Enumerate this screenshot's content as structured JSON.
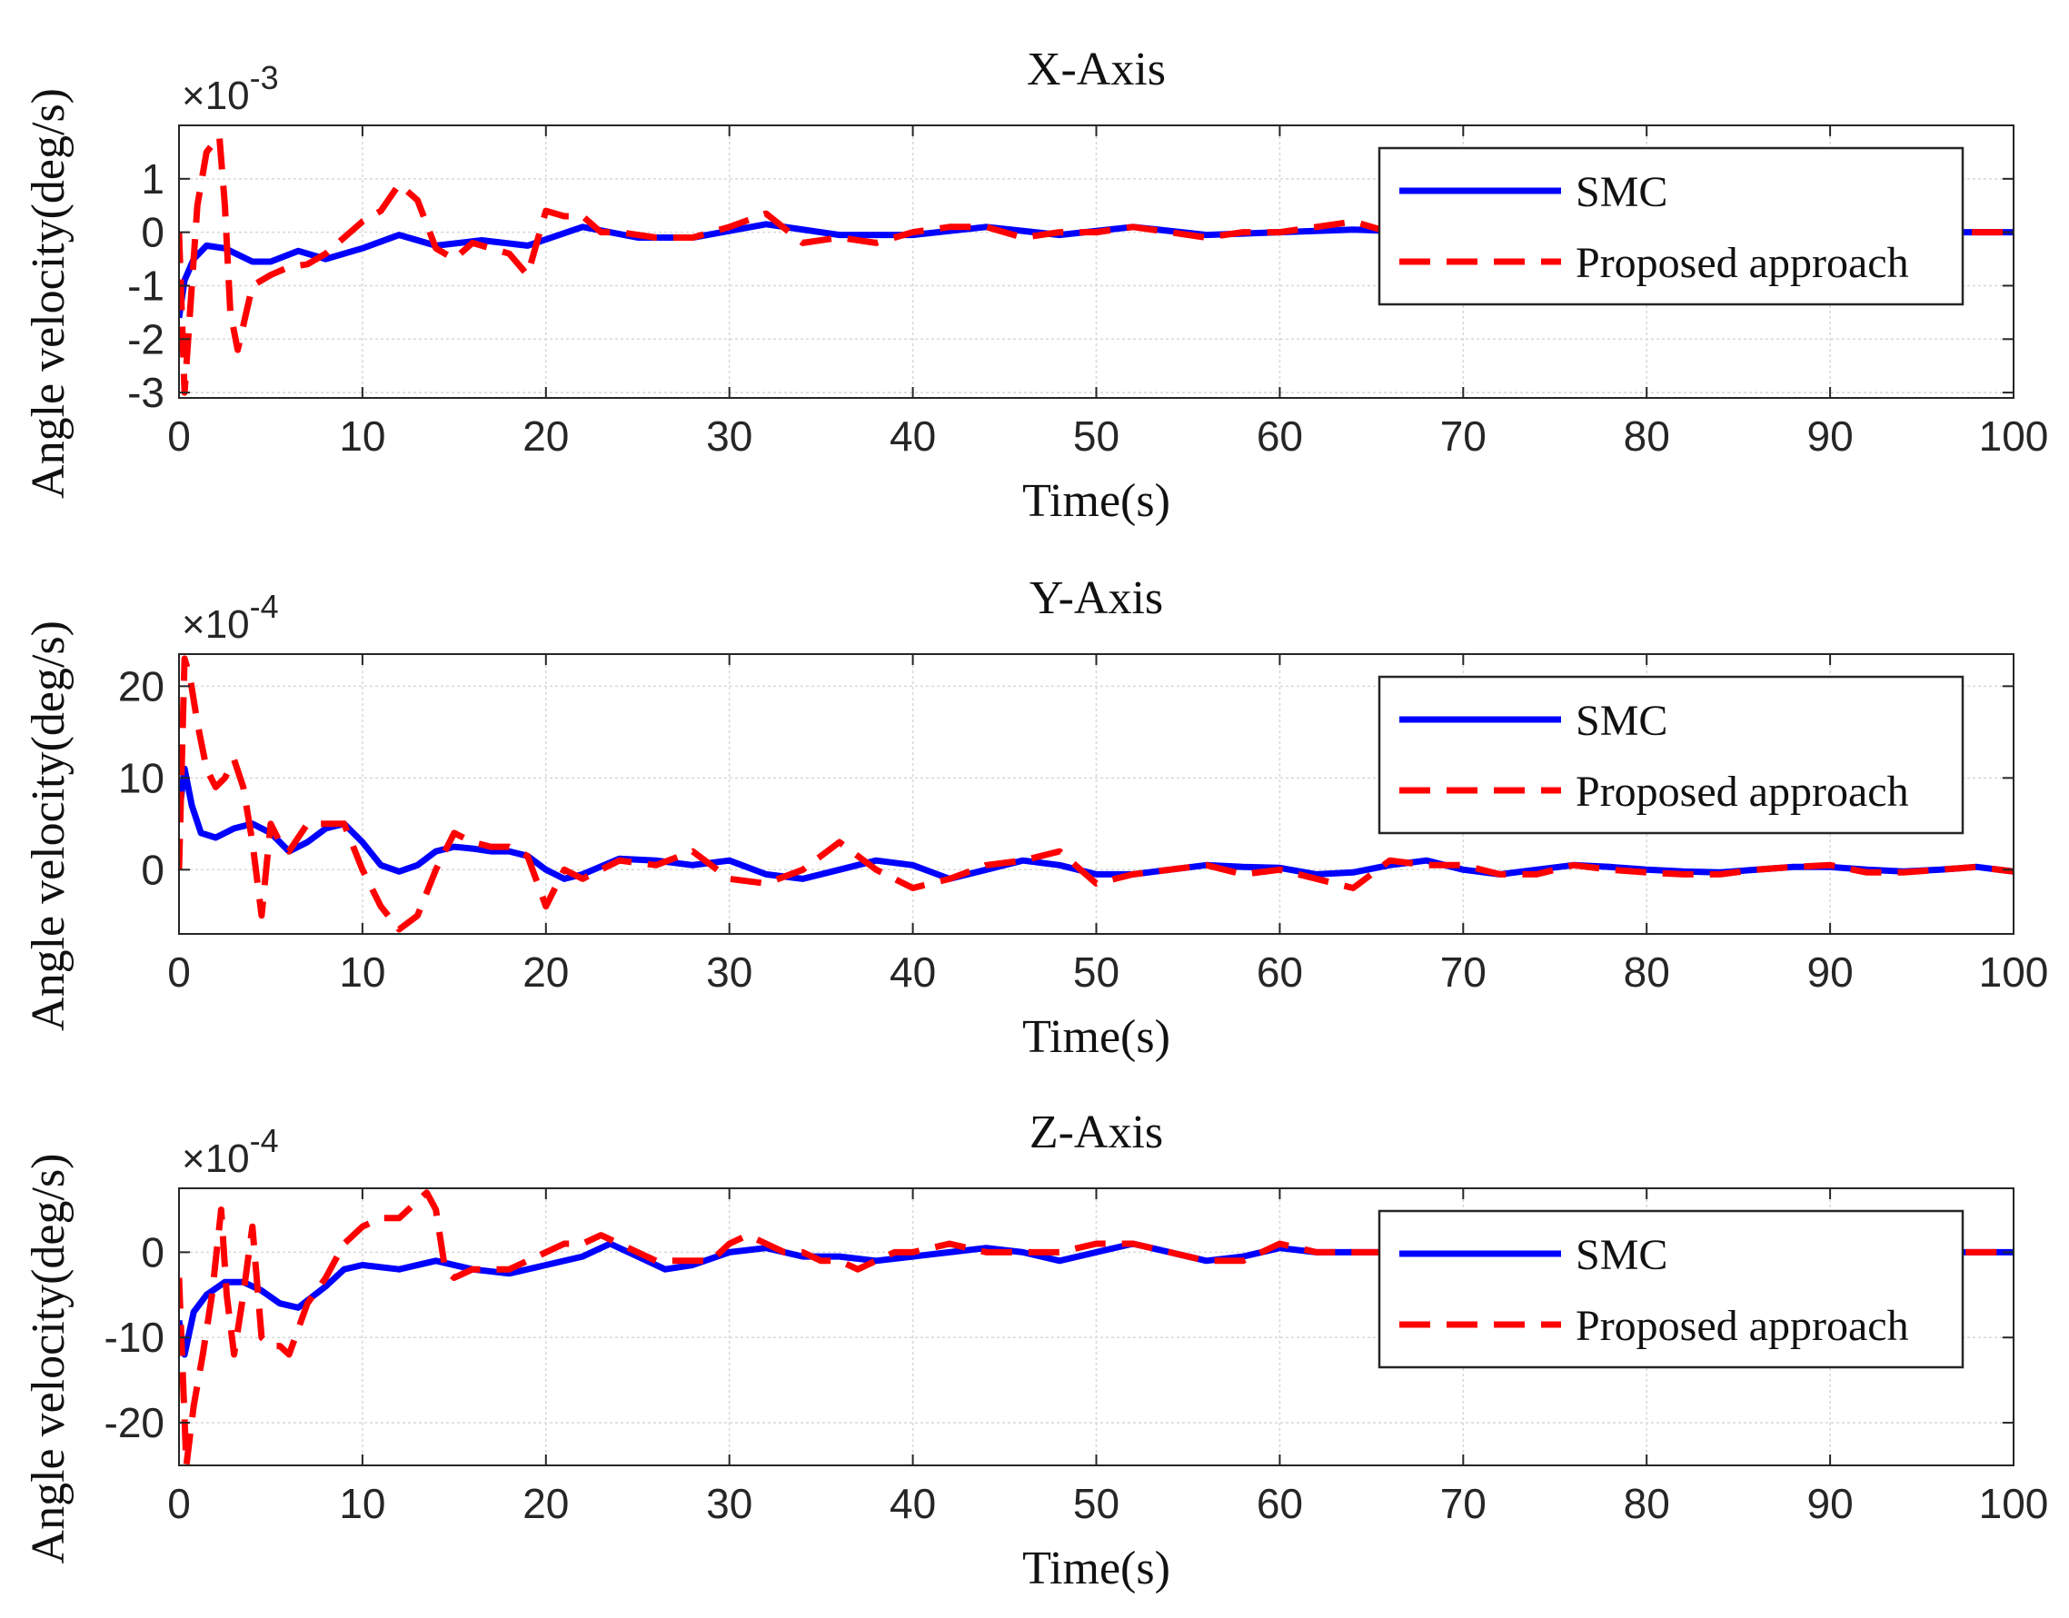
{
  "figure": {
    "legend_labels": [
      "SMC",
      "Proposed approach"
    ]
  },
  "chart_data": [
    {
      "type": "line",
      "title": "X-Axis",
      "xlabel": "Time(s)",
      "ylabel": "Angle velocity(deg/s)",
      "exponent": "-3",
      "xlim": [
        0,
        100
      ],
      "ylim": [
        -3.1,
        2.0
      ],
      "xticks": [
        0,
        10,
        20,
        30,
        40,
        50,
        60,
        70,
        80,
        90,
        100
      ],
      "yticks": [
        -3,
        -2,
        -1,
        0,
        1
      ],
      "grid": true,
      "legend_position": "top-right",
      "series": [
        {
          "name": "SMC",
          "color": "#0000ff",
          "style": "solid",
          "x": [
            0,
            0.3,
            0.8,
            1.5,
            2.5,
            4,
            5,
            6.5,
            8,
            10,
            12,
            14,
            16.5,
            19,
            22,
            25,
            28,
            32,
            36,
            40,
            44,
            48,
            52,
            56,
            60,
            64,
            68,
            72,
            76,
            80,
            84,
            88,
            92,
            96,
            100
          ],
          "y": [
            -1.6,
            -0.9,
            -0.5,
            -0.25,
            -0.3,
            -0.55,
            -0.55,
            -0.35,
            -0.5,
            -0.3,
            -0.05,
            -0.25,
            -0.15,
            -0.25,
            0.1,
            -0.1,
            -0.1,
            0.15,
            -0.05,
            -0.05,
            0.1,
            -0.05,
            0.1,
            -0.05,
            0.0,
            0.05,
            0.0,
            0.0,
            0.05,
            0.0,
            0.05,
            0.0,
            0.05,
            0.0,
            0.0
          ]
        },
        {
          "name": "Proposed approach",
          "color": "#ff0000",
          "style": "dashed",
          "x": [
            0,
            0.3,
            0.6,
            1,
            1.5,
            2.2,
            2.5,
            2.8,
            3.2,
            4,
            5,
            6,
            7,
            8,
            9,
            10,
            11,
            12,
            13,
            14,
            15,
            16,
            17,
            18,
            19,
            20,
            21,
            22,
            23,
            24,
            26,
            28,
            30,
            32,
            34,
            36,
            38,
            40,
            42,
            44,
            46,
            48,
            50,
            52,
            54,
            56,
            58,
            60,
            62,
            64,
            66,
            68,
            70,
            72,
            74,
            76,
            78,
            80,
            82,
            84,
            86,
            88,
            90,
            92,
            94,
            96,
            98,
            100
          ],
          "y": [
            0.0,
            -3.0,
            -1.5,
            0.5,
            1.5,
            1.8,
            0.5,
            -1.5,
            -2.2,
            -1.0,
            -0.8,
            -0.65,
            -0.6,
            -0.4,
            -0.1,
            0.2,
            0.4,
            0.9,
            0.6,
            -0.3,
            -0.5,
            -0.2,
            -0.3,
            -0.4,
            -0.8,
            0.4,
            0.3,
            0.3,
            0.0,
            0.0,
            -0.1,
            -0.1,
            0.1,
            0.35,
            -0.2,
            -0.1,
            -0.2,
            0.0,
            0.1,
            0.1,
            -0.1,
            0.0,
            0.0,
            0.1,
            0.0,
            -0.1,
            0.0,
            0.0,
            0.1,
            0.2,
            0.0,
            0.1,
            0.0,
            0.05,
            0.0,
            0.05,
            0.0,
            0.0,
            0.05,
            0.0,
            0.05,
            0.0,
            0.0,
            0.05,
            0.0,
            0.0,
            0.0,
            0.0
          ]
        }
      ]
    },
    {
      "type": "line",
      "title": "Y-Axis",
      "xlabel": "Time(s)",
      "ylabel": "Angle velocity(deg/s)",
      "exponent": "-4",
      "xlim": [
        0,
        100
      ],
      "ylim": [
        -7,
        23.5
      ],
      "xticks": [
        0,
        10,
        20,
        30,
        40,
        50,
        60,
        70,
        80,
        90,
        100
      ],
      "yticks": [
        0,
        10,
        20
      ],
      "grid": true,
      "legend_position": "top-right",
      "series": [
        {
          "name": "SMC",
          "color": "#0000ff",
          "style": "solid",
          "x": [
            0,
            0.3,
            0.7,
            1.2,
            2,
            3,
            4,
            5,
            6,
            7,
            8,
            9,
            10,
            11,
            12,
            13,
            14,
            15,
            16,
            17,
            18,
            19,
            20,
            21,
            22,
            24,
            26,
            28,
            30,
            32,
            34,
            36,
            38,
            40,
            42,
            44,
            46,
            48,
            50,
            52,
            54,
            56,
            58,
            60,
            62,
            64,
            66,
            68,
            70,
            72,
            74,
            76,
            78,
            80,
            82,
            84,
            86,
            88,
            90,
            92,
            94,
            96,
            98,
            100
          ],
          "y": [
            6,
            11,
            7,
            4,
            3.5,
            4.5,
            5,
            4,
            2,
            3,
            4.5,
            5,
            3,
            0.5,
            -0.2,
            0.5,
            2,
            2.5,
            2.3,
            2,
            2,
            1.5,
            0,
            -1,
            -0.5,
            1.2,
            1,
            0.5,
            1,
            -0.5,
            -1,
            0,
            1,
            0.5,
            -1,
            0,
            1,
            0.5,
            -0.5,
            -0.5,
            0,
            0.5,
            0.3,
            0.2,
            -0.5,
            -0.3,
            0.5,
            1,
            0,
            -0.5,
            0,
            0.5,
            0.3,
            0,
            -0.2,
            -0.3,
            0,
            0.3,
            0.3,
            0,
            -0.2,
            0,
            0.3,
            -0.2
          ]
        },
        {
          "name": "Proposed approach",
          "color": "#ff0000",
          "style": "dashed",
          "x": [
            0,
            0.3,
            0.6,
            1,
            1.5,
            2,
            2.5,
            3,
            3.5,
            4,
            4.5,
            5,
            5.5,
            6,
            7,
            8,
            9,
            10,
            11,
            12,
            13,
            14,
            15,
            16,
            17,
            18,
            19,
            20,
            21,
            22,
            24,
            26,
            28,
            30,
            32,
            34,
            36,
            38,
            40,
            42,
            44,
            46,
            48,
            50,
            52,
            54,
            56,
            58,
            60,
            62,
            64,
            66,
            68,
            70,
            72,
            74,
            76,
            78,
            80,
            82,
            84,
            86,
            88,
            90,
            92,
            94,
            96,
            98,
            100
          ],
          "y": [
            0,
            23,
            21,
            16,
            11,
            9,
            10,
            12,
            9,
            3,
            -5,
            5,
            3,
            2,
            5,
            5,
            5,
            0,
            -4,
            -6.5,
            -5,
            0,
            4,
            3,
            2.5,
            2.5,
            1.5,
            -4,
            0,
            -1,
            1,
            0.5,
            2,
            -1,
            -1.5,
            0,
            3,
            0,
            -2,
            -1,
            0.5,
            1,
            2,
            -1.5,
            -0.5,
            0,
            0.5,
            -0.5,
            0,
            -1,
            -2,
            1,
            0.5,
            0.5,
            -0.5,
            -0.5,
            0.5,
            0,
            -0.3,
            -0.5,
            -0.5,
            0,
            0.3,
            0.5,
            -0.3,
            -0.3,
            0,
            0.3,
            -0.2
          ]
        }
      ]
    },
    {
      "type": "line",
      "title": "Z-Axis",
      "xlabel": "Time(s)",
      "ylabel": "Angle velocity(deg/s)",
      "exponent": "-4",
      "xlim": [
        0,
        100
      ],
      "ylim": [
        -25,
        7.5
      ],
      "xticks": [
        0,
        10,
        20,
        30,
        40,
        50,
        60,
        70,
        80,
        90,
        100
      ],
      "yticks": [
        -20,
        -10,
        0
      ],
      "grid": true,
      "legend_position": "top-right",
      "series": [
        {
          "name": "SMC",
          "color": "#0000ff",
          "style": "solid",
          "x": [
            0,
            0.3,
            0.8,
            1.5,
            2.5,
            3.5,
            4.5,
            5.5,
            6.5,
            8,
            9,
            10,
            12,
            14,
            16,
            18,
            20,
            22,
            23.5,
            25,
            26.5,
            28,
            30,
            32,
            34,
            36,
            38,
            40,
            42,
            44,
            46,
            48,
            50,
            52,
            54,
            56,
            58,
            60,
            62,
            64,
            66,
            68,
            70,
            72,
            74,
            76,
            78,
            80,
            82,
            84,
            86,
            88,
            90,
            92,
            94,
            96,
            98,
            100
          ],
          "y": [
            -8,
            -12,
            -7,
            -5,
            -3.5,
            -3.5,
            -4.5,
            -6,
            -6.5,
            -4,
            -2,
            -1.5,
            -2,
            -1,
            -2,
            -2.5,
            -1.5,
            -0.5,
            1,
            -0.5,
            -2,
            -1.5,
            0,
            0.5,
            -0.5,
            -0.5,
            -1,
            -0.5,
            0,
            0.5,
            0,
            -1,
            0,
            1,
            0,
            -1,
            -0.5,
            0.5,
            0,
            0,
            0,
            0,
            0,
            0,
            0,
            0,
            0,
            0,
            0,
            0,
            0,
            0,
            0,
            0,
            0,
            0,
            0,
            0
          ]
        },
        {
          "name": "Proposed approach",
          "color": "#ff0000",
          "style": "dashed",
          "x": [
            0,
            0.4,
            0.8,
            1.3,
            1.8,
            2.3,
            2.6,
            3.0,
            3.5,
            4.0,
            4.5,
            5.0,
            5.5,
            6,
            7,
            8,
            9,
            10,
            11,
            12,
            13,
            13.5,
            14,
            14.5,
            15,
            16,
            17,
            18,
            19,
            20,
            21,
            22,
            23,
            24,
            25,
            26,
            27,
            28,
            29,
            30,
            31,
            32,
            33,
            34,
            35,
            36,
            37,
            38,
            39,
            40,
            42,
            44,
            46,
            48,
            50,
            52,
            54,
            56,
            58,
            60,
            62,
            64,
            66,
            68,
            70,
            75,
            80,
            85,
            90,
            95,
            100
          ],
          "y": [
            -3,
            -25,
            -18,
            -12,
            -5,
            5,
            -5,
            -12,
            -5,
            3,
            -10,
            -11,
            -11,
            -12,
            -6,
            -3,
            1,
            3,
            4,
            4,
            6,
            7,
            5,
            -2,
            -3,
            -2,
            -2,
            -2,
            -1,
            0,
            1,
            1,
            2,
            1,
            0,
            -1,
            -1,
            -1,
            -1,
            1,
            2,
            1,
            0,
            0,
            -1,
            -1,
            -2,
            -1,
            0,
            0,
            1,
            0,
            0,
            0,
            1,
            1,
            0,
            -1,
            -1,
            1,
            0,
            0,
            0,
            0,
            0,
            0,
            0,
            0,
            0,
            0,
            0
          ]
        }
      ]
    }
  ]
}
